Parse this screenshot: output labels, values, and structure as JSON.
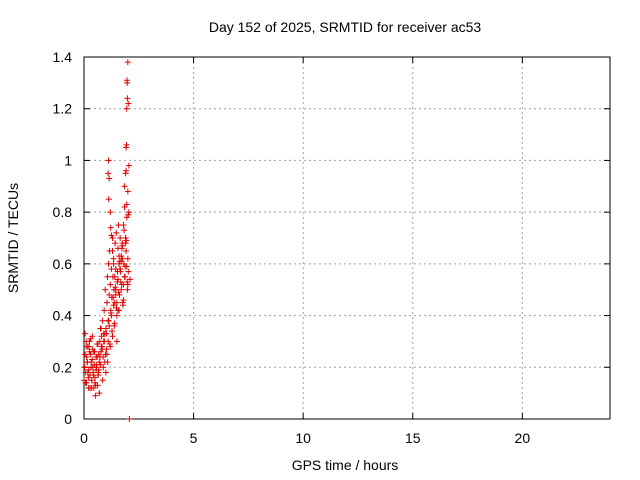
{
  "chart_data": {
    "type": "scatter",
    "title": "Day 152 of 2025, SRMTID for receiver ac53",
    "xlabel": "GPS time / hours",
    "ylabel": "SRMTID / TECUs",
    "xlim": [
      0,
      24
    ],
    "ylim": [
      0,
      1.4
    ],
    "grid": true,
    "marker": "+",
    "color": "#e00000",
    "x_ticks": [
      0,
      5,
      10,
      15,
      20
    ],
    "x_tick_labels": [
      "0",
      "5",
      "10",
      "15",
      "20"
    ],
    "y_ticks": [
      0,
      0.2,
      0.4,
      0.6,
      0.8,
      1.0,
      1.2,
      1.4
    ],
    "y_tick_labels": [
      "0",
      "0.2",
      "0.4",
      "0.6",
      "0.8",
      "1",
      "1.2",
      "1.4"
    ],
    "series": [
      {
        "name": "SRMTID",
        "x": [
          0.0,
          0.03,
          0.05,
          0.08,
          0.1,
          0.12,
          0.15,
          0.17,
          0.2,
          0.22,
          0.25,
          0.27,
          0.3,
          0.32,
          0.35,
          0.37,
          0.4,
          0.42,
          0.45,
          0.47,
          0.5,
          0.52,
          0.55,
          0.57,
          0.6,
          0.62,
          0.65,
          0.67,
          0.7,
          0.72,
          0.75,
          0.77,
          0.8,
          0.82,
          0.85,
          0.87,
          0.9,
          0.92,
          0.95,
          0.97,
          1.0,
          1.02,
          1.05,
          1.07,
          1.1,
          1.12,
          1.15,
          1.17,
          1.2,
          1.22,
          1.25,
          1.27,
          1.3,
          1.32,
          1.35,
          1.37,
          1.4,
          1.42,
          1.45,
          1.47,
          1.5,
          1.52,
          1.55,
          1.57,
          1.6,
          1.62,
          1.65,
          1.67,
          1.7,
          1.72,
          1.75,
          1.77,
          1.8,
          1.82,
          1.85,
          1.87,
          1.9,
          1.92,
          1.95,
          1.97,
          2.0,
          2.02,
          2.05,
          2.07,
          0.05,
          0.1,
          0.15,
          0.2,
          0.25,
          0.3,
          0.35,
          0.4,
          0.45,
          0.5,
          0.55,
          0.6,
          0.65,
          0.7,
          0.75,
          0.8,
          0.85,
          0.9,
          0.95,
          1.0,
          1.05,
          1.1,
          1.15,
          1.2,
          1.25,
          1.3,
          1.35,
          1.4,
          1.45,
          1.5,
          1.55,
          1.6,
          1.65,
          1.7,
          1.75,
          1.8,
          1.85,
          1.9,
          1.95,
          2.0,
          0.02,
          0.07,
          0.12,
          0.18,
          0.23,
          0.28,
          0.33,
          0.38,
          0.43,
          0.48,
          0.53,
          0.58,
          0.63,
          0.68,
          0.73,
          0.78,
          0.83,
          0.88,
          0.93,
          0.98,
          1.03,
          1.08,
          1.13,
          1.18,
          1.23,
          1.28,
          1.33,
          1.38,
          1.43,
          1.48,
          1.53,
          1.58,
          1.63,
          1.68,
          1.73,
          1.78,
          1.83,
          1.88,
          1.93,
          1.98,
          1.1,
          1.12,
          1.15,
          1.13,
          1.2,
          1.22,
          1.25,
          1.3,
          1.35,
          1.4,
          1.45,
          1.5,
          1.55,
          1.6,
          1.65,
          1.7,
          1.75,
          1.8,
          1.85,
          1.9,
          1.92,
          1.95,
          1.97,
          2.0,
          2.02,
          2.05,
          1.94,
          1.96,
          1.98,
          2.0,
          2.02,
          1.92,
          1.95,
          1.9,
          2.1
        ],
        "y": [
          0.15,
          0.2,
          0.25,
          0.18,
          0.3,
          0.14,
          0.22,
          0.28,
          0.12,
          0.19,
          0.26,
          0.17,
          0.31,
          0.2,
          0.15,
          0.23,
          0.27,
          0.18,
          0.12,
          0.21,
          0.16,
          0.09,
          0.24,
          0.2,
          0.29,
          0.13,
          0.18,
          0.25,
          0.22,
          0.3,
          0.35,
          0.26,
          0.32,
          0.28,
          0.38,
          0.24,
          0.3,
          0.42,
          0.33,
          0.5,
          0.35,
          0.27,
          0.45,
          0.55,
          0.38,
          0.6,
          0.48,
          0.65,
          0.52,
          0.42,
          0.58,
          0.47,
          0.7,
          0.55,
          0.62,
          0.5,
          0.45,
          0.68,
          0.58,
          0.72,
          0.4,
          0.53,
          0.66,
          0.75,
          0.6,
          0.48,
          0.7,
          0.57,
          0.63,
          0.52,
          0.68,
          0.45,
          0.75,
          0.6,
          0.82,
          0.55,
          0.7,
          0.65,
          0.78,
          0.53,
          0.62,
          0.57,
          0.8,
          0.0,
          0.33,
          0.28,
          0.22,
          0.16,
          0.3,
          0.25,
          0.12,
          0.2,
          0.26,
          0.14,
          0.19,
          0.24,
          0.17,
          0.1,
          0.21,
          0.28,
          0.15,
          0.33,
          0.22,
          0.18,
          0.25,
          0.3,
          0.36,
          0.28,
          0.4,
          0.32,
          0.44,
          0.37,
          0.48,
          0.3,
          0.54,
          0.42,
          0.58,
          0.5,
          0.62,
          0.46,
          0.55,
          0.68,
          0.59,
          0.52,
          0.2,
          0.14,
          0.24,
          0.18,
          0.28,
          0.12,
          0.22,
          0.32,
          0.17,
          0.26,
          0.13,
          0.21,
          0.29,
          0.19,
          0.24,
          0.35,
          0.27,
          0.2,
          0.3,
          0.25,
          0.33,
          0.22,
          0.38,
          0.29,
          0.41,
          0.34,
          0.47,
          0.36,
          0.51,
          0.43,
          0.57,
          0.49,
          0.61,
          0.53,
          0.66,
          0.44,
          0.73,
          0.59,
          0.69,
          0.5,
          0.95,
          1.0,
          0.93,
          0.85,
          0.8,
          0.74,
          0.71,
          0.65,
          0.6,
          0.55,
          0.5,
          0.45,
          0.42,
          0.63,
          0.58,
          0.61,
          0.67,
          0.52,
          0.9,
          0.95,
          1.05,
          1.2,
          1.3,
          1.38,
          1.22,
          0.98,
          1.06,
          1.31,
          1.24,
          0.88,
          0.79,
          0.96,
          0.83,
          0.7,
          0.54
        ]
      }
    ]
  }
}
